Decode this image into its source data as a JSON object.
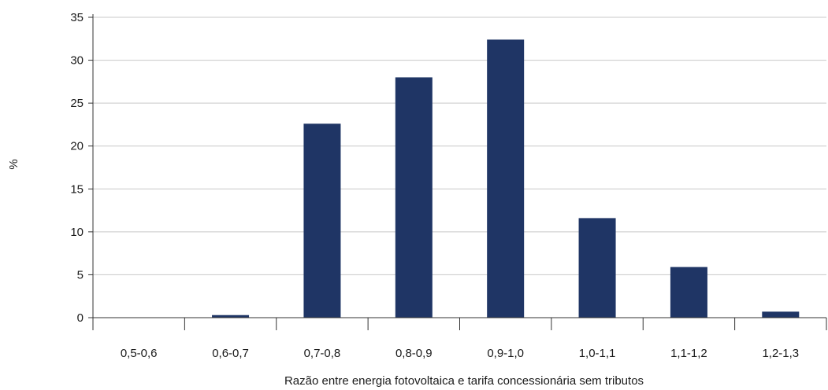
{
  "chart_data": {
    "type": "bar",
    "title": "",
    "xlabel": "Razão entre energia fotovoltaica e tarifa concessionária sem tributos",
    "ylabel": "%",
    "categories": [
      "0,5-0,6",
      "0,6-0,7",
      "0,7-0,8",
      "0,8-0,9",
      "0,9-1,0",
      "1,0-1,1",
      "1,1-1,2",
      "1,2-1,3"
    ],
    "values": [
      0,
      0.3,
      22.6,
      28.0,
      32.4,
      11.6,
      5.9,
      0.7
    ],
    "ylim": [
      0,
      35
    ],
    "yticks": [
      "0",
      "5",
      "10",
      "15",
      "20",
      "25",
      "30",
      "35"
    ],
    "grid": true,
    "bar_color": "#1f3565"
  }
}
